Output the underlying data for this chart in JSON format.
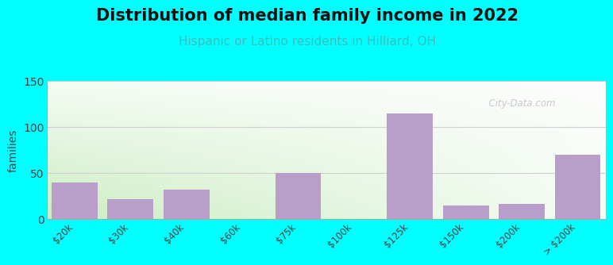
{
  "title": "Distribution of median family income in 2022",
  "subtitle": "Hispanic or Latino residents in Hilliard, OH",
  "title_fontsize": 15,
  "subtitle_fontsize": 11,
  "subtitle_color": "#3dbdbd",
  "ylabel": "families",
  "ylabel_fontsize": 10,
  "bg_color": "#00ffff",
  "bar_color": "#b89ec8",
  "categories": [
    "$20k",
    "$30k",
    "$40k",
    "$60k",
    "$75k",
    "$100k",
    "$125k",
    "$150k",
    "$200k",
    "> $200k"
  ],
  "values": [
    40,
    22,
    32,
    0,
    50,
    0,
    115,
    15,
    17,
    70
  ],
  "ylim": [
    0,
    150
  ],
  "yticks": [
    0,
    50,
    100,
    150
  ],
  "grid_color": "#d0d0d0",
  "watermark": "  City-Data.com",
  "watermark_color": "#c0c0c0",
  "grad_bl": [
    0.8,
    0.93,
    0.76
  ],
  "grad_br": [
    0.96,
    0.99,
    0.96
  ],
  "grad_tl": [
    0.96,
    0.99,
    0.96
  ],
  "grad_tr": [
    0.99,
    0.99,
    0.99
  ]
}
